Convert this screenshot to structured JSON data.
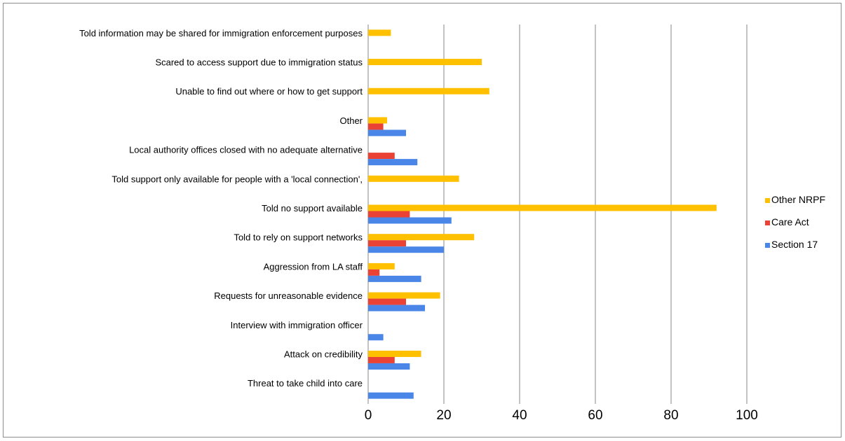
{
  "chart_data": {
    "type": "bar",
    "orientation": "horizontal",
    "categories": [
      "Told information may be shared for immigration enforcement purposes",
      "Scared to access support due to immigration status",
      "Unable to find out where or how to get support",
      "Other",
      "Local authority offices closed with no adequate alternative",
      "Told support only available for people with a 'local connection',",
      "Told no support available",
      "Told to rely on support networks",
      "Aggression from LA staff",
      "Requests for unreasonable evidence",
      "Interview with immigration officer",
      "Attack on credibility",
      "Threat to take child into care"
    ],
    "series": [
      {
        "name": "Other NRPF",
        "color": "#FFC000",
        "values": [
          6,
          30,
          32,
          5,
          0,
          24,
          92,
          28,
          7,
          19,
          0,
          14,
          0
        ]
      },
      {
        "name": "Care Act",
        "color": "#EA4335",
        "values": [
          0,
          0,
          0,
          4,
          7,
          0,
          11,
          10,
          3,
          10,
          0,
          7,
          0
        ]
      },
      {
        "name": "Section 17",
        "color": "#4A86E8",
        "values": [
          0,
          0,
          0,
          10,
          13,
          0,
          22,
          20,
          14,
          15,
          4,
          11,
          12
        ]
      }
    ],
    "xlim": [
      0,
      100
    ],
    "xticks": [
      0,
      20,
      40,
      60,
      80,
      100
    ],
    "xticklabels": [
      "0",
      "20",
      "40",
      "60",
      "80",
      "100"
    ],
    "grid": "vertical",
    "legend": "right",
    "legend_order": [
      "Other NRPF",
      "Care Act",
      "Section 17"
    ],
    "title": "",
    "xlabel": "",
    "ylabel": ""
  }
}
